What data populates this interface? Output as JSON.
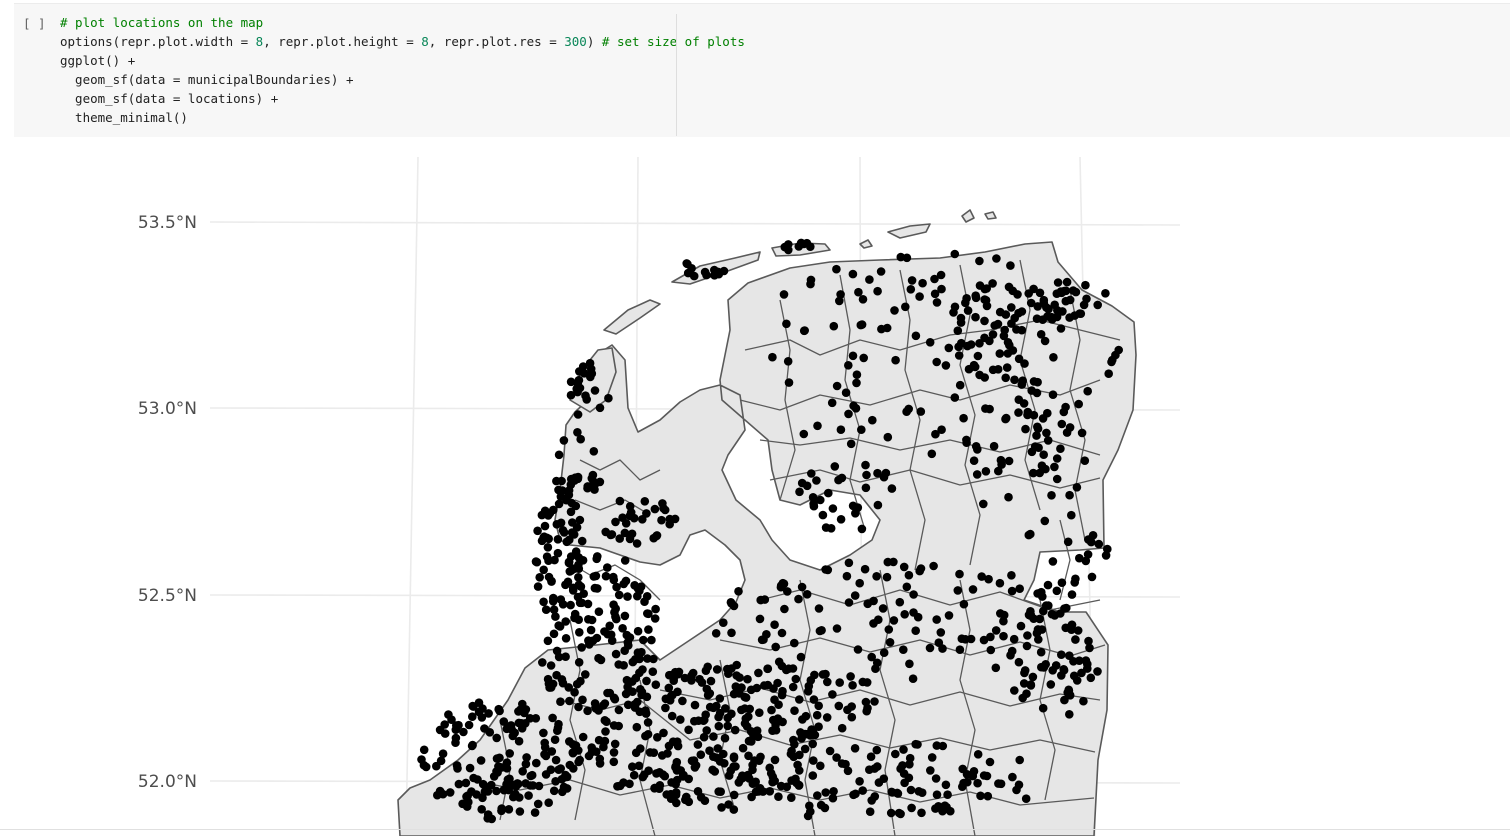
{
  "cell": {
    "prompt": "[ ]",
    "code": {
      "comment1": "# plot locations on the map",
      "line2_a": "options(repr.plot.width = ",
      "line2_w": "8",
      "line2_b": ", repr.plot.height = ",
      "line2_h": "8",
      "line2_c": ", repr.plot.res = ",
      "line2_r": "300",
      "line2_d": ") ",
      "comment2": "# set size of plots",
      "line3": "ggplot() +",
      "line4": "  geom_sf(data = municipalBoundaries) +",
      "line5": "  geom_sf(data = locations) +",
      "line6": "  theme_minimal()"
    }
  },
  "chart_data": {
    "type": "scatter",
    "title": "",
    "xlabel": "",
    "ylabel": "",
    "y_ticks": [
      "53.5°N",
      "53.0°N",
      "52.5°N",
      "52.0°N"
    ],
    "grid": true,
    "layers": [
      "municipalBoundaries",
      "locations"
    ],
    "colors": {
      "land_fill": "#e6e6e6",
      "boundary": "#5a5a5a",
      "points": "#000000",
      "grid": "#ebebeb"
    }
  }
}
